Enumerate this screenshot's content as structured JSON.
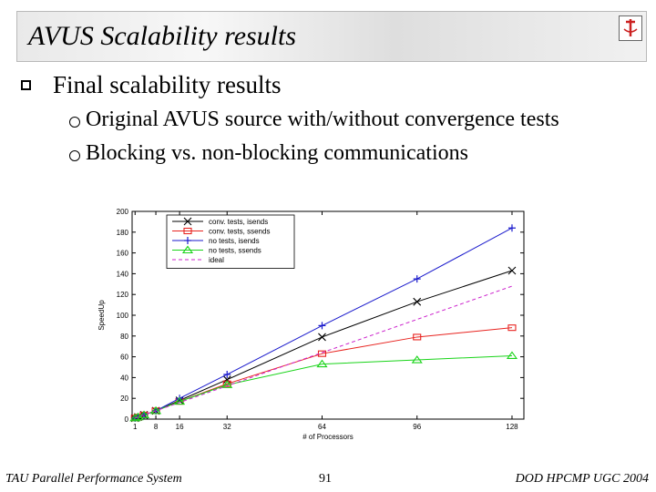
{
  "slide": {
    "title": "AVUS Scalability results",
    "bullet_main": "Final scalability results",
    "sub_bullets": [
      "Original AVUS source with/without convergence tests",
      "Blocking vs. non-blocking communications"
    ],
    "footer_left": "TAU Parallel Performance System",
    "page_number": "91",
    "footer_right": "DOD HPCMP UGC 2004"
  },
  "chart_data": {
    "type": "line",
    "title": "",
    "xlabel": "# of Processors",
    "ylabel": "SpeedUp",
    "xlim": [
      0,
      132
    ],
    "ylim": [
      0,
      200
    ],
    "xticks": [
      1,
      8,
      16,
      32,
      64,
      96,
      128
    ],
    "yticks": [
      0,
      20,
      40,
      60,
      80,
      100,
      120,
      140,
      160,
      180,
      200
    ],
    "legend_position": "top-left",
    "series": [
      {
        "name": "conv. tests, isends",
        "marker": "x",
        "color": "#000000",
        "x": [
          1,
          2,
          4,
          8,
          16,
          32,
          64,
          96,
          128
        ],
        "y": [
          1,
          2,
          4,
          8,
          18,
          38,
          79,
          113,
          143
        ]
      },
      {
        "name": "conv. tests, ssends",
        "marker": "square",
        "color": "#e8231f",
        "x": [
          1,
          2,
          4,
          8,
          16,
          32,
          64,
          96,
          128
        ],
        "y": [
          1,
          2,
          4,
          8,
          17,
          34,
          63,
          79,
          88
        ]
      },
      {
        "name": "no tests, isends",
        "marker": "plus",
        "color": "#1a1acc",
        "x": [
          1,
          2,
          4,
          8,
          16,
          32,
          64,
          96,
          128
        ],
        "y": [
          1,
          2,
          4,
          8,
          20,
          43,
          90,
          135,
          184
        ]
      },
      {
        "name": "no tests, ssends",
        "marker": "triangle",
        "color": "#19d419",
        "x": [
          1,
          2,
          4,
          8,
          16,
          32,
          64,
          96,
          128
        ],
        "y": [
          1,
          2,
          4,
          8,
          17,
          33,
          53,
          57,
          61
        ]
      },
      {
        "name": "ideal",
        "marker": "none",
        "dash": true,
        "color": "#cc22cc",
        "x": [
          1,
          128
        ],
        "y": [
          1,
          128
        ]
      }
    ]
  }
}
